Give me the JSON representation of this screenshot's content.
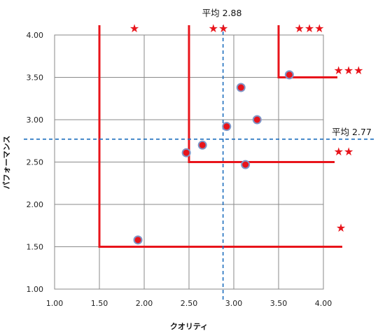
{
  "chart_data": {
    "type": "scatter",
    "xlabel": "クオリティ",
    "ylabel": "パフォーマンス",
    "xlim": [
      1.0,
      4.0
    ],
    "ylim": [
      1.0,
      4.0
    ],
    "x_ticks": [
      "1.00",
      "1.50",
      "2.00",
      "2.50",
      "3.00",
      "3.50",
      "4.00"
    ],
    "y_ticks": [
      "1.00",
      "1.50",
      "2.00",
      "2.50",
      "3.00",
      "3.50",
      "4.00"
    ],
    "grid": true,
    "points": [
      {
        "x": 1.93,
        "y": 1.58
      },
      {
        "x": 2.47,
        "y": 2.61
      },
      {
        "x": 2.65,
        "y": 2.7
      },
      {
        "x": 2.92,
        "y": 2.92
      },
      {
        "x": 3.08,
        "y": 3.38
      },
      {
        "x": 3.13,
        "y": 2.47
      },
      {
        "x": 3.26,
        "y": 3.0
      },
      {
        "x": 3.62,
        "y": 3.53
      }
    ],
    "marker_fill": "#e8141b",
    "marker_edge": "#7f96c8",
    "averages": {
      "x": {
        "value": 2.88,
        "label": "平均 2.88"
      },
      "y": {
        "value": 2.77,
        "label": "平均 2.77"
      },
      "color": "#1f6fbf"
    },
    "tiers": [
      {
        "x_min": 1.5,
        "y_min": 1.5,
        "stars": "★"
      },
      {
        "x_min": 2.5,
        "y_min": 2.5,
        "stars": "★★"
      },
      {
        "x_min": 3.5,
        "y_min": 3.5,
        "stars": "★★★"
      }
    ],
    "top_star_labels": [
      "★",
      "★★",
      "★★★"
    ],
    "right_star_labels": [
      "★★★",
      "★★",
      "★"
    ],
    "tier_color": "#e8141b",
    "grid_color": "#8a8a8a"
  }
}
